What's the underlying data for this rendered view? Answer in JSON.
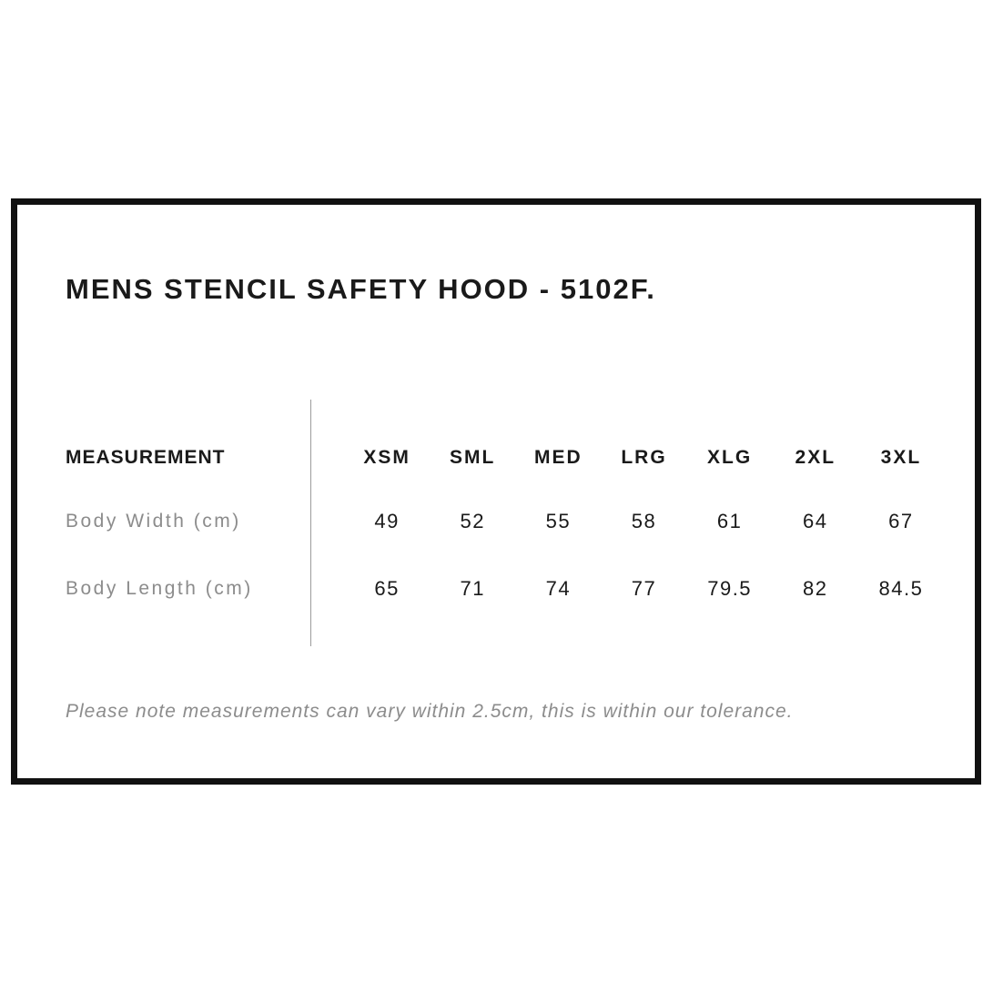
{
  "page_title": "MENS STENCIL SAFETY HOOD - 5102F.",
  "chart_data": {
    "type": "table",
    "title": "MENS STENCIL SAFETY HOOD - 5102F.",
    "columns": [
      "MEASUREMENT",
      "XSM",
      "SML",
      "MED",
      "LRG",
      "XLG",
      "2XL",
      "3XL"
    ],
    "rows": [
      [
        "Body Width (cm)",
        49,
        52,
        55,
        58,
        61,
        64,
        67
      ],
      [
        "Body Length (cm)",
        65,
        71,
        74,
        77,
        79.5,
        82,
        84.5
      ]
    ],
    "note": "Please note measurements can vary within 2.5cm, this is within our tolerance."
  },
  "colors": {
    "background": "#ffffff",
    "frame_border": "#111111",
    "text_primary": "#1a1a1a",
    "text_muted": "#8c8c8c",
    "divider": "#9c9c9c"
  }
}
